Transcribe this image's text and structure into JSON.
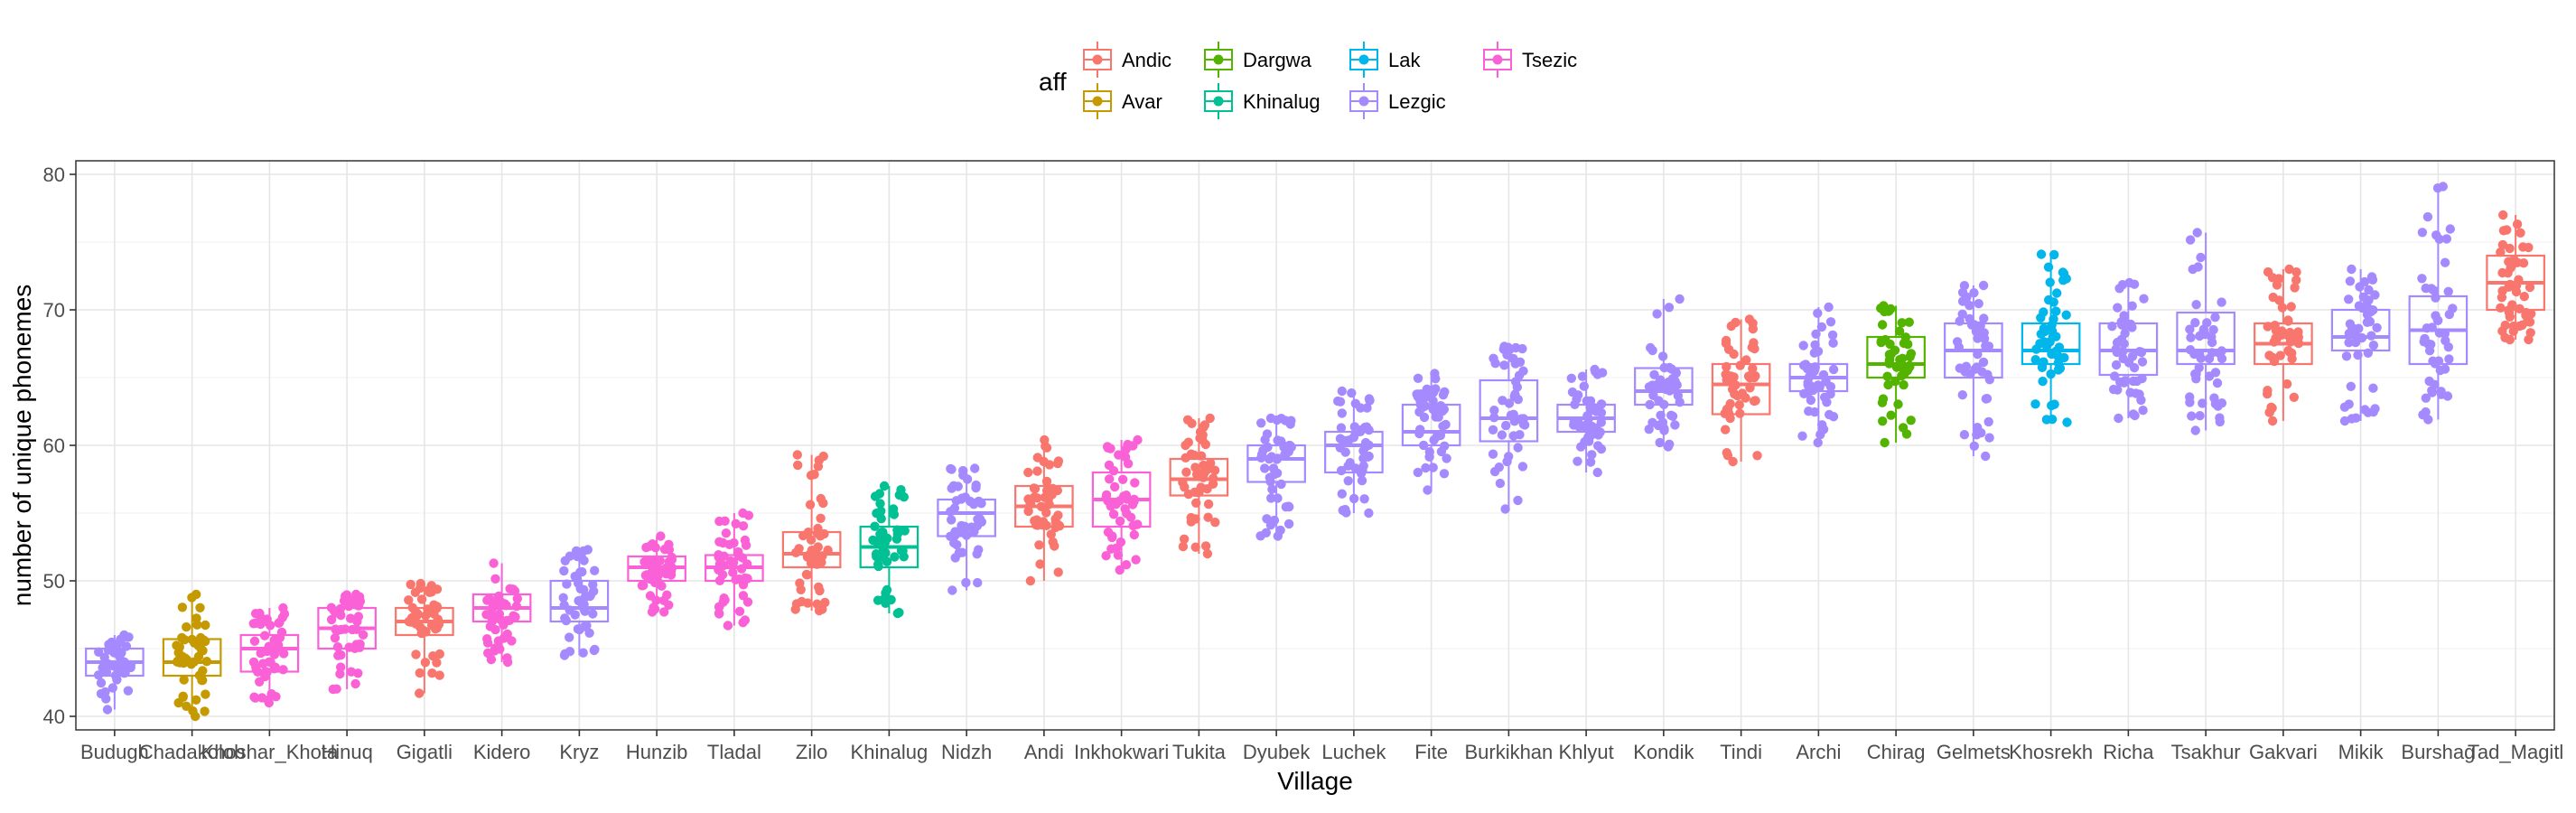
{
  "chart_data": {
    "type": "box",
    "xlabel": "Village",
    "ylabel": "number of unique phonemes",
    "ylim": [
      39,
      81
    ],
    "yticks": [
      40,
      50,
      60,
      70,
      80
    ],
    "grid": true,
    "legend": {
      "title": "aff",
      "position": "top",
      "entries": [
        {
          "name": "Andic",
          "color": "#F8766D"
        },
        {
          "name": "Avar",
          "color": "#C49A00"
        },
        {
          "name": "Dargwa",
          "color": "#53B400"
        },
        {
          "name": "Khinalug",
          "color": "#00C094"
        },
        {
          "name": "Lak",
          "color": "#00B6EB"
        },
        {
          "name": "Lezgic",
          "color": "#A58AFF"
        },
        {
          "name": "Tsezic",
          "color": "#FB61D7"
        }
      ]
    },
    "categories": [
      "Budugh",
      "Chadakolob",
      "Khoshar_Khota",
      "Hinuq",
      "Gigatli",
      "Kidero",
      "Kryz",
      "Hunzib",
      "Tladal",
      "Zilo",
      "Khinalug",
      "Nidzh",
      "Andi",
      "Inkhokwari",
      "Tukita",
      "Dyubek",
      "Luchek",
      "Fite",
      "Burkikhan",
      "Khlyut",
      "Kondik",
      "Tindi",
      "Archi",
      "Chirag",
      "Gelmets",
      "Khosrekh",
      "Richa",
      "Tsakhur",
      "Gakvari",
      "Mikik",
      "Burshag",
      "Tad_Magitl"
    ],
    "boxes": [
      {
        "village": "Budugh",
        "aff": "Lezgic",
        "min": 40.5,
        "q1": 43.0,
        "median": 44.0,
        "q3": 45.0,
        "max": 46.0
      },
      {
        "village": "Chadakolob",
        "aff": "Avar",
        "min": 40.0,
        "q1": 43.0,
        "median": 44.0,
        "q3": 45.7,
        "max": 49.0
      },
      {
        "village": "Khoshar_Khota",
        "aff": "Tsezic",
        "min": 41.0,
        "q1": 43.3,
        "median": 45.0,
        "q3": 46.0,
        "max": 48.0
      },
      {
        "village": "Hinuq",
        "aff": "Tsezic",
        "min": 42.0,
        "q1": 45.0,
        "median": 46.5,
        "q3": 48.0,
        "max": 49.0
      },
      {
        "village": "Gigatli",
        "aff": "Andic",
        "min": 41.7,
        "q1": 46.0,
        "median": 47.0,
        "q3": 48.0,
        "max": 49.8
      },
      {
        "village": "Kidero",
        "aff": "Tsezic",
        "min": 44.0,
        "q1": 47.0,
        "median": 48.0,
        "q3": 49.0,
        "max": 51.3
      },
      {
        "village": "Kryz",
        "aff": "Lezgic",
        "min": 44.5,
        "q1": 47.0,
        "median": 48.0,
        "q3": 50.0,
        "max": 52.3
      },
      {
        "village": "Hunzib",
        "aff": "Tsezic",
        "min": 47.7,
        "q1": 50.0,
        "median": 51.0,
        "q3": 51.8,
        "max": 53.3
      },
      {
        "village": "Tladal",
        "aff": "Tsezic",
        "min": 46.7,
        "q1": 50.0,
        "median": 51.0,
        "q3": 51.9,
        "max": 55.0
      },
      {
        "village": "Zilo",
        "aff": "Andic",
        "min": 47.8,
        "q1": 51.0,
        "median": 52.0,
        "q3": 53.6,
        "max": 59.3
      },
      {
        "village": "Khinalug",
        "aff": "Khinalug",
        "min": 47.6,
        "q1": 51.0,
        "median": 52.5,
        "q3": 54.0,
        "max": 57.0
      },
      {
        "village": "Nidzh",
        "aff": "Lezgic",
        "min": 49.3,
        "q1": 53.3,
        "median": 55.0,
        "q3": 56.0,
        "max": 58.3
      },
      {
        "village": "Andi",
        "aff": "Andic",
        "min": 50.0,
        "q1": 54.0,
        "median": 55.5,
        "q3": 57.0,
        "max": 60.4
      },
      {
        "village": "Inkhokwari",
        "aff": "Tsezic",
        "min": 50.8,
        "q1": 54.0,
        "median": 56.0,
        "q3": 58.0,
        "max": 60.4
      },
      {
        "village": "Tukita",
        "aff": "Andic",
        "min": 52.0,
        "q1": 56.3,
        "median": 57.5,
        "q3": 59.0,
        "max": 62.0
      },
      {
        "village": "Dyubek",
        "aff": "Lezgic",
        "min": 53.3,
        "q1": 57.3,
        "median": 59.0,
        "q3": 60.0,
        "max": 62.0
      },
      {
        "village": "Luchek",
        "aff": "Lezgic",
        "min": 55.0,
        "q1": 58.0,
        "median": 60.0,
        "q3": 61.0,
        "max": 64.0
      },
      {
        "village": "Fite",
        "aff": "Lezgic",
        "min": 56.7,
        "q1": 60.0,
        "median": 61.0,
        "q3": 63.0,
        "max": 65.3
      },
      {
        "village": "Burkikhan",
        "aff": "Lezgic",
        "min": 55.3,
        "q1": 60.3,
        "median": 62.0,
        "q3": 64.8,
        "max": 67.3
      },
      {
        "village": "Khlyut",
        "aff": "Lezgic",
        "min": 58.0,
        "q1": 61.0,
        "median": 62.0,
        "q3": 63.0,
        "max": 65.6
      },
      {
        "village": "Kondik",
        "aff": "Lezgic",
        "min": 59.9,
        "q1": 63.0,
        "median": 64.0,
        "q3": 65.7,
        "max": 70.8
      },
      {
        "village": "Tindi",
        "aff": "Andic",
        "min": 58.8,
        "q1": 62.3,
        "median": 64.5,
        "q3": 66.0,
        "max": 69.3
      },
      {
        "village": "Archi",
        "aff": "Lezgic",
        "min": 60.2,
        "q1": 64.0,
        "median": 65.0,
        "q3": 66.0,
        "max": 70.2
      },
      {
        "village": "Chirag",
        "aff": "Dargwa",
        "min": 60.2,
        "q1": 65.0,
        "median": 66.0,
        "q3": 68.0,
        "max": 70.3
      },
      {
        "village": "Gelmets",
        "aff": "Lezgic",
        "min": 59.2,
        "q1": 65.0,
        "median": 67.0,
        "q3": 69.0,
        "max": 71.8
      },
      {
        "village": "Khosrekh",
        "aff": "Lak",
        "min": 61.7,
        "q1": 66.0,
        "median": 67.0,
        "q3": 69.0,
        "max": 74.1
      },
      {
        "village": "Richa",
        "aff": "Lezgic",
        "min": 62.0,
        "q1": 65.2,
        "median": 67.0,
        "q3": 69.0,
        "max": 72.0
      },
      {
        "village": "Tsakhur",
        "aff": "Lezgic",
        "min": 61.1,
        "q1": 66.0,
        "median": 67.0,
        "q3": 69.8,
        "max": 75.7
      },
      {
        "village": "Gakvari",
        "aff": "Andic",
        "min": 61.8,
        "q1": 66.0,
        "median": 67.5,
        "q3": 69.0,
        "max": 73.0
      },
      {
        "village": "Mikik",
        "aff": "Lezgic",
        "min": 61.8,
        "q1": 67.0,
        "median": 68.0,
        "q3": 70.0,
        "max": 73.0
      },
      {
        "village": "Burshag",
        "aff": "Lezgic",
        "min": 61.9,
        "q1": 66.0,
        "median": 68.5,
        "q3": 71.0,
        "max": 79.1
      },
      {
        "village": "Tad_Magitl",
        "aff": "Andic",
        "min": 67.8,
        "q1": 70.0,
        "median": 72.0,
        "q3": 74.0,
        "max": 77.0
      }
    ]
  }
}
